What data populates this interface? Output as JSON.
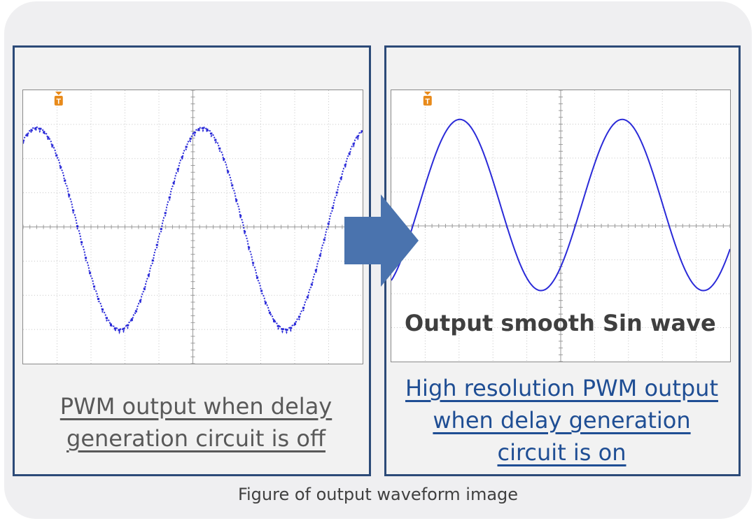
{
  "left_panel": {
    "caption_line1": "PWM output when delay",
    "caption_line2": "generation circuit is off",
    "trigger_marker": "T"
  },
  "right_panel": {
    "caption_line1": "High resolution PWM output",
    "caption_line2": "when delay generation",
    "caption_line3": "circuit is on",
    "overlay_text": "Output smooth Sin wave",
    "trigger_marker": "T"
  },
  "figure_caption": "Figure of output waveform image",
  "colors": {
    "panel_border": "#2c4a78",
    "arrow": "#4a73ae",
    "waveform": "#2a2ad8",
    "trigger_marker": "#e88a1a",
    "left_caption": "#595959",
    "right_caption": "#1f4e94"
  }
}
